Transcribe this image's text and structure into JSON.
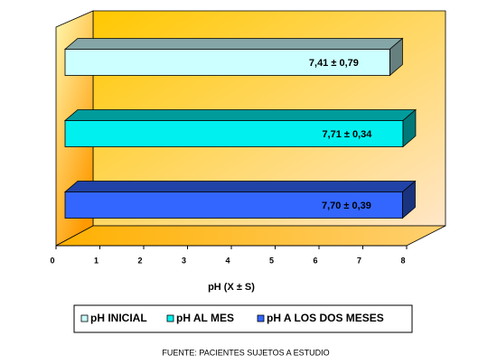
{
  "chart_data": {
    "type": "bar",
    "orientation": "horizontal",
    "categories": [
      null
    ],
    "series": [
      {
        "name": "pH INICIAL",
        "color": "#ccffff",
        "values": [
          7.41
        ],
        "value_labels": [
          "7,41 ± 0,79"
        ]
      },
      {
        "name": "pH AL MES",
        "color": "#00f0f0",
        "values": [
          7.71
        ],
        "value_labels": [
          "7,71 ± 0,34"
        ]
      },
      {
        "name": "pH A LOS DOS MESES",
        "color": "#3366ff",
        "values": [
          7.7
        ],
        "value_labels": [
          "7,70 ± 0,39"
        ]
      }
    ],
    "x_label": "pH (X ± S)",
    "xlim": [
      0,
      8
    ],
    "xticks": [
      0,
      1,
      2,
      3,
      4,
      5,
      6,
      7,
      8
    ],
    "legend": "bottom",
    "footnote": "FUENTE: PACIENTES SUJETOS A ESTUDIO"
  }
}
